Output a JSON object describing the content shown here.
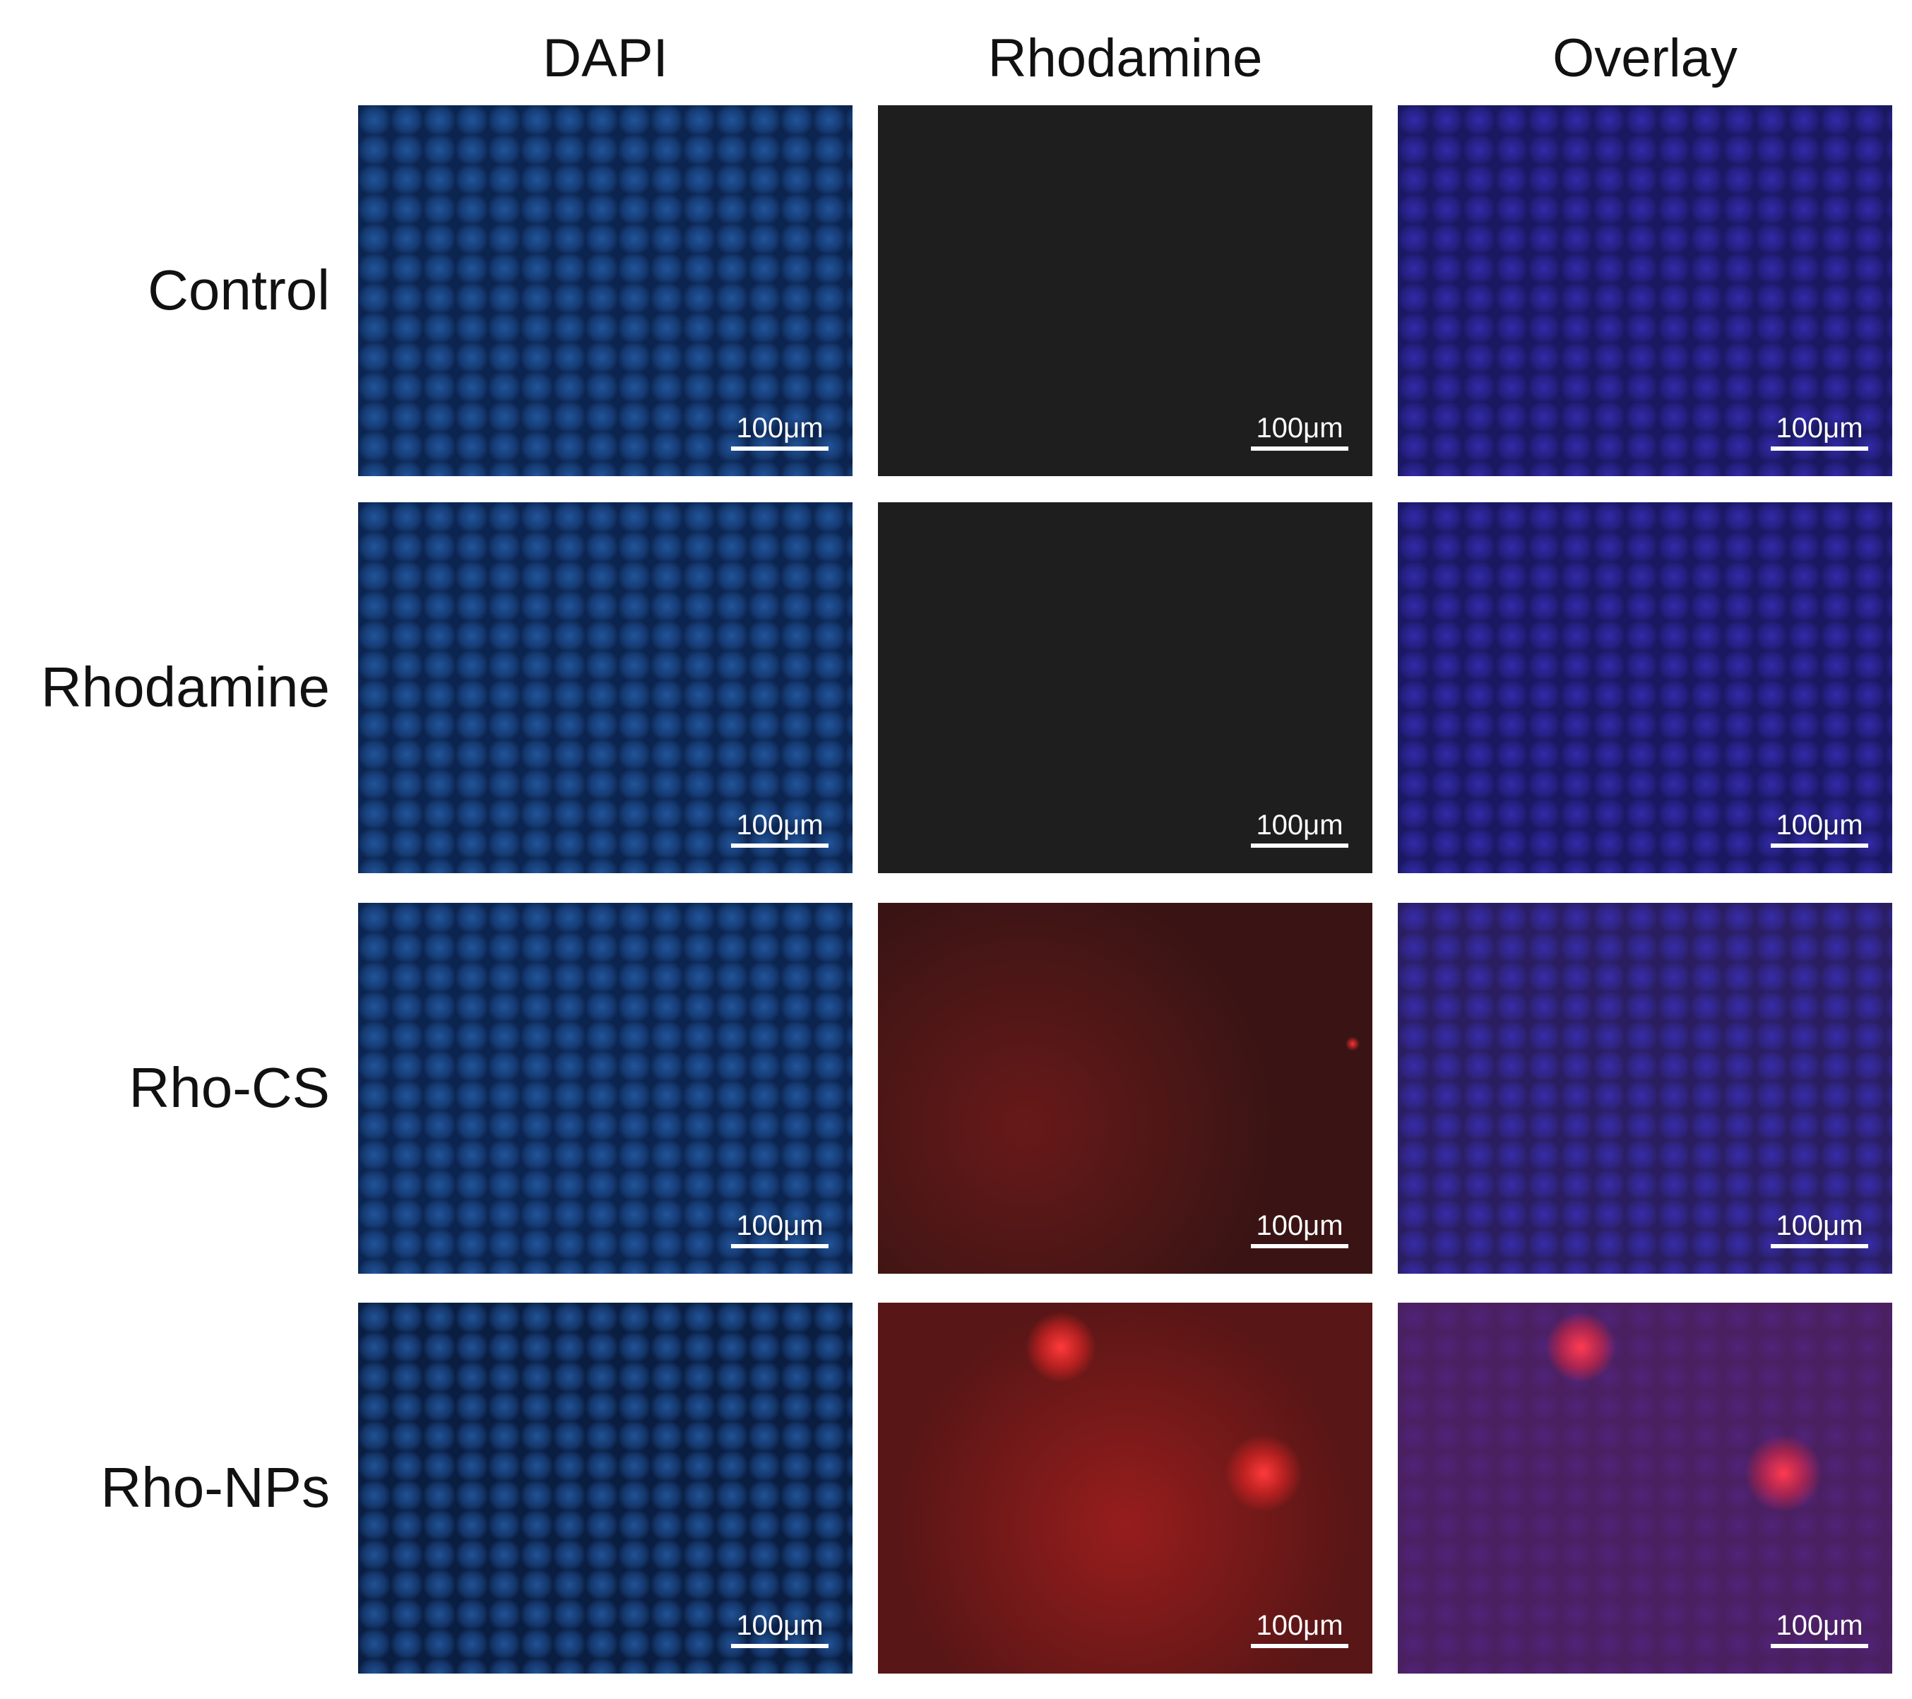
{
  "columns": [
    "DAPI",
    "Rhodamine",
    "Overlay"
  ],
  "rows": [
    {
      "label": "Control",
      "panels": [
        {
          "scale_label": "100μm"
        },
        {
          "scale_label": "100μm"
        },
        {
          "scale_label": "100μm"
        }
      ]
    },
    {
      "label": "Rhodamine",
      "panels": [
        {
          "scale_label": "100μm"
        },
        {
          "scale_label": "100μm"
        },
        {
          "scale_label": "100μm"
        }
      ]
    },
    {
      "label": "Rho-CS",
      "panels": [
        {
          "scale_label": "100μm"
        },
        {
          "scale_label": "100μm"
        },
        {
          "scale_label": "100μm"
        }
      ]
    },
    {
      "label": "Rho-NPs",
      "panels": [
        {
          "scale_label": "100μm"
        },
        {
          "scale_label": "100μm"
        },
        {
          "scale_label": "100μm"
        }
      ]
    }
  ]
}
